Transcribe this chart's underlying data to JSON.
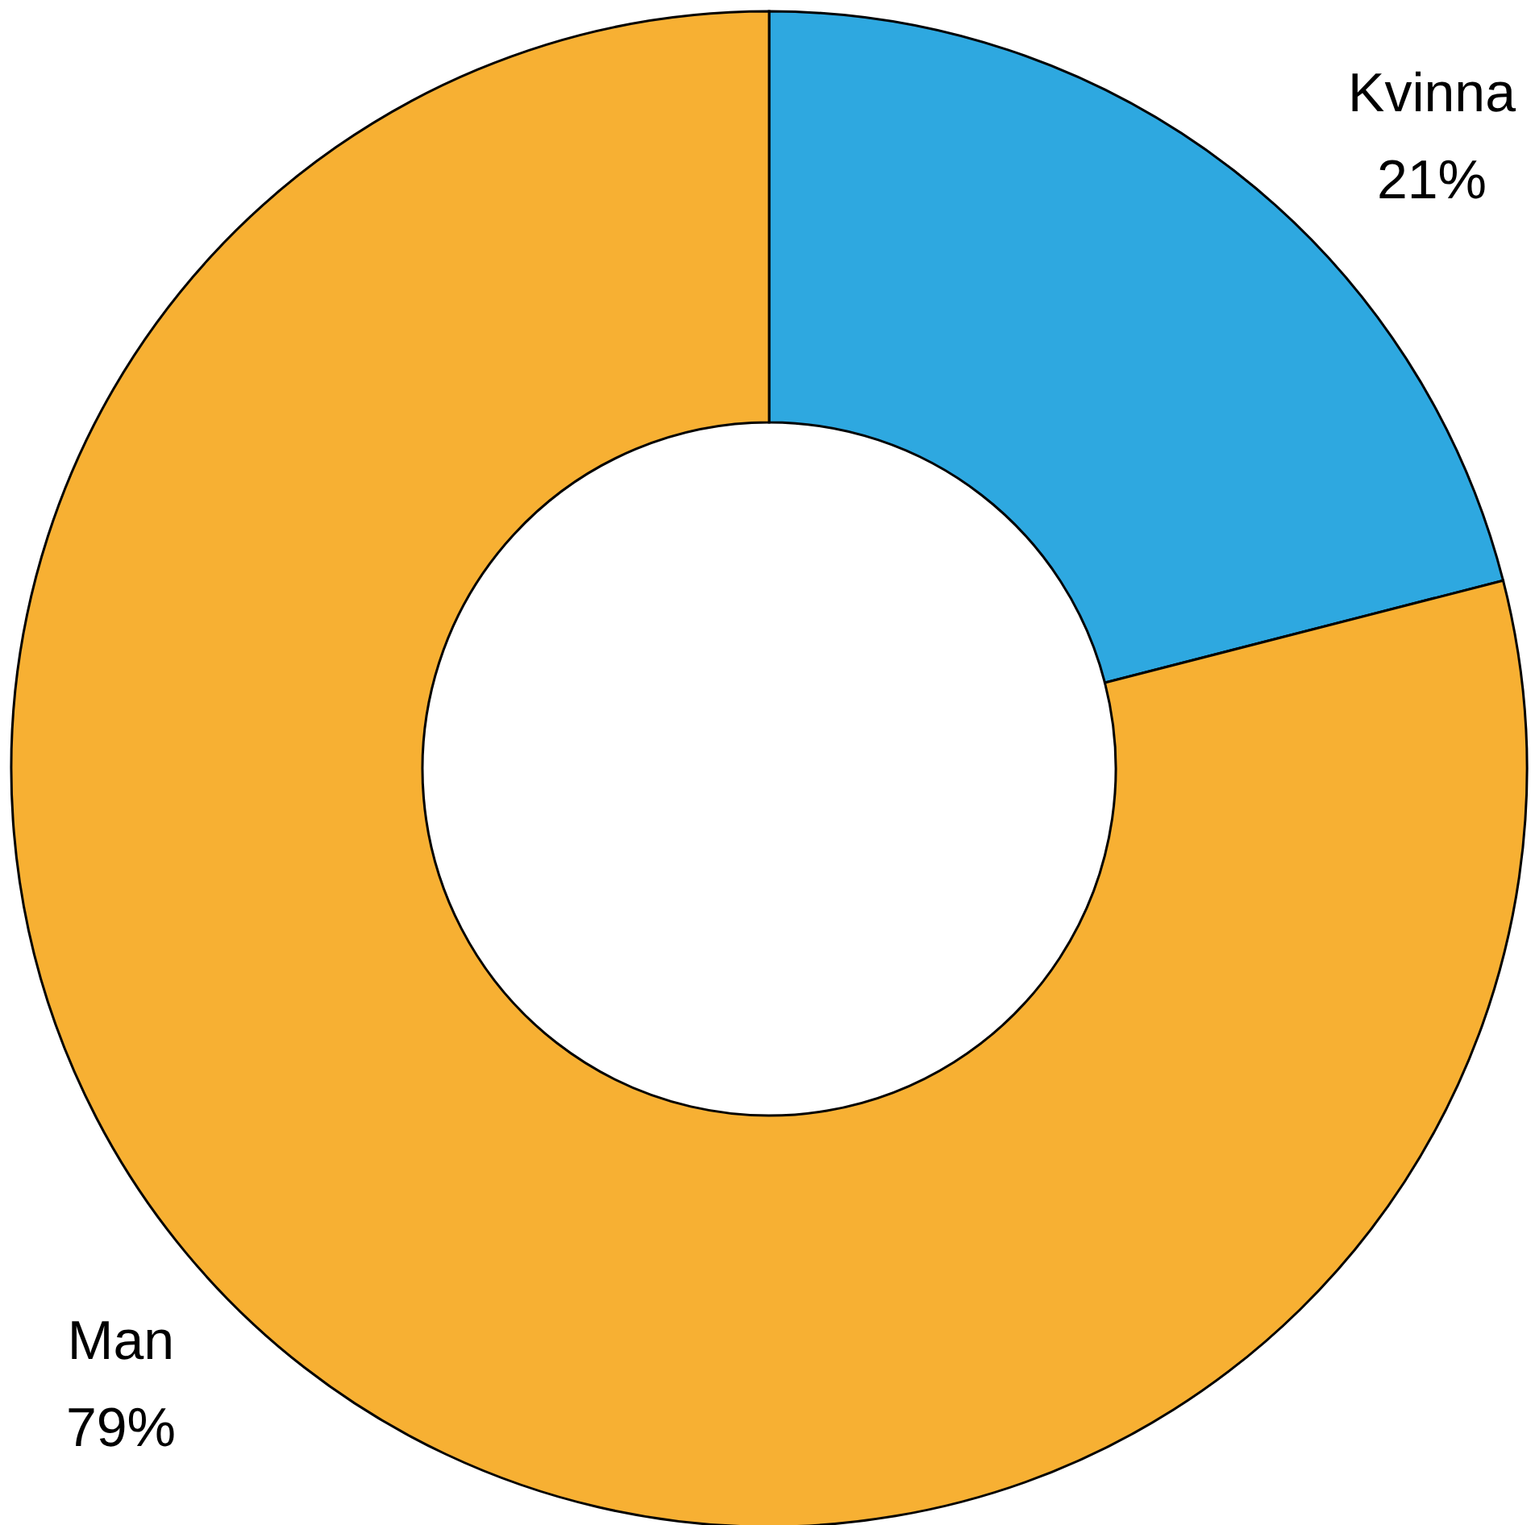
{
  "chart_data": {
    "type": "donut",
    "categories": [
      "Kvinna",
      "Man"
    ],
    "values": [
      21,
      79
    ],
    "colors": [
      "#2ea8e0",
      "#f7b033"
    ],
    "value_labels": [
      "21%",
      "79%"
    ]
  }
}
